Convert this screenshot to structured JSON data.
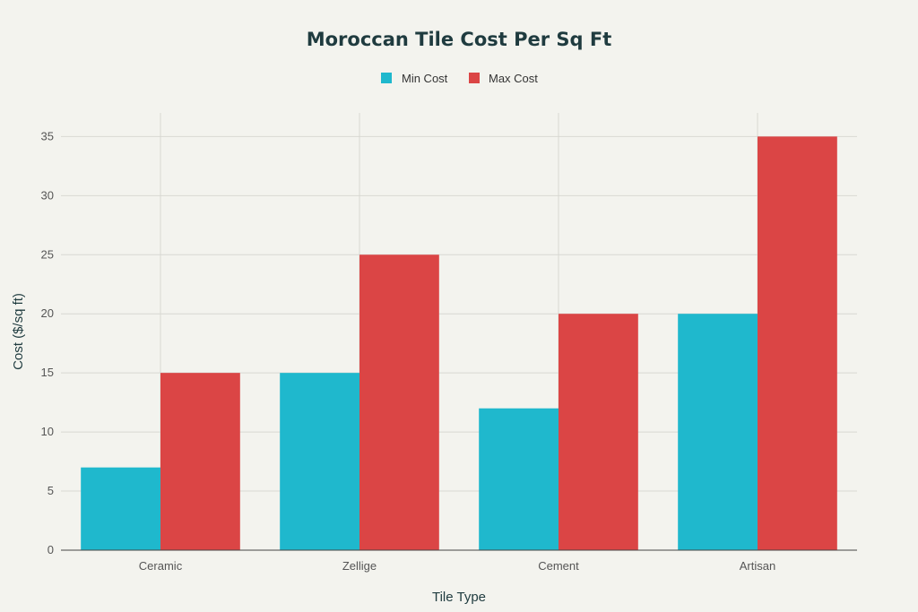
{
  "chart_data": {
    "type": "bar",
    "title": "Moroccan Tile Cost Per Sq Ft",
    "xlabel": "Tile Type",
    "ylabel": "Cost ($/sq ft)",
    "categories": [
      "Ceramic",
      "Zellige",
      "Cement",
      "Artisan"
    ],
    "series": [
      {
        "name": "Min Cost",
        "values": [
          7,
          15,
          12,
          20
        ],
        "color": "#1fb8cd"
      },
      {
        "name": "Max Cost",
        "values": [
          15,
          25,
          20,
          35
        ],
        "color": "#db4545"
      }
    ],
    "ylim": [
      0,
      37
    ],
    "yticks": [
      0,
      5,
      10,
      15,
      20,
      25,
      30,
      35
    ],
    "grid": true,
    "legend_position": "top-center"
  }
}
